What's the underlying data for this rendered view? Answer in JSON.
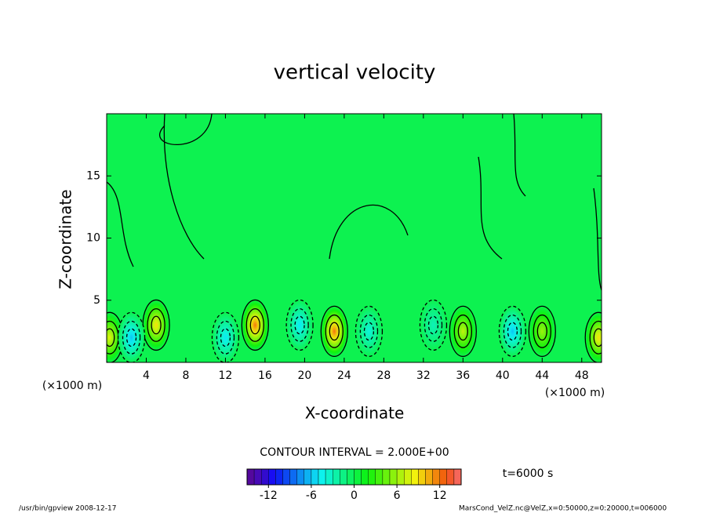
{
  "chart_data": {
    "type": "contour",
    "title": "vertical velocity",
    "x_label": "X-coordinate",
    "y_label": "Z-coordinate",
    "x_unit": "(×1000 m)",
    "y_unit": "(×1000 m)",
    "xlim": [
      0,
      50
    ],
    "ylim": [
      0,
      20
    ],
    "xticks": [
      4,
      8,
      12,
      16,
      20,
      24,
      28,
      32,
      36,
      40,
      44,
      48
    ],
    "yticks": [
      5,
      10,
      15
    ],
    "features": [
      {
        "x": 0.3,
        "z": 2,
        "value": 8
      },
      {
        "x": 5,
        "z": 3,
        "value": 9
      },
      {
        "x": 15,
        "z": 3,
        "value": 12
      },
      {
        "x": 23,
        "z": 2.5,
        "value": 12
      },
      {
        "x": 36,
        "z": 2.5,
        "value": 7
      },
      {
        "x": 44,
        "z": 2.5,
        "value": 6
      },
      {
        "x": 49.7,
        "z": 2,
        "value": 9
      },
      {
        "x": 2.5,
        "z": 2,
        "value": -6
      },
      {
        "x": 12,
        "z": 2,
        "value": -5
      },
      {
        "x": 19.5,
        "z": 3,
        "value": -5
      },
      {
        "x": 26.5,
        "z": 2.5,
        "value": -4
      },
      {
        "x": 33,
        "z": 3,
        "value": -3
      },
      {
        "x": 41,
        "z": 2.5,
        "value": -6
      }
    ],
    "contour_interval": "CONTOUR INTERVAL = 2.000E+00",
    "colorbar": {
      "lim": [
        -15,
        15
      ],
      "interval": 1,
      "ticks": [
        -12,
        -6,
        0,
        6,
        12
      ]
    },
    "time_label": "t=6000 s",
    "footer_left": "/usr/bin/gpview  2008-12-17",
    "footer_right": "MarsCond_VelZ.nc@VelZ,x=0:50000,z=0:20000,t=006000"
  }
}
